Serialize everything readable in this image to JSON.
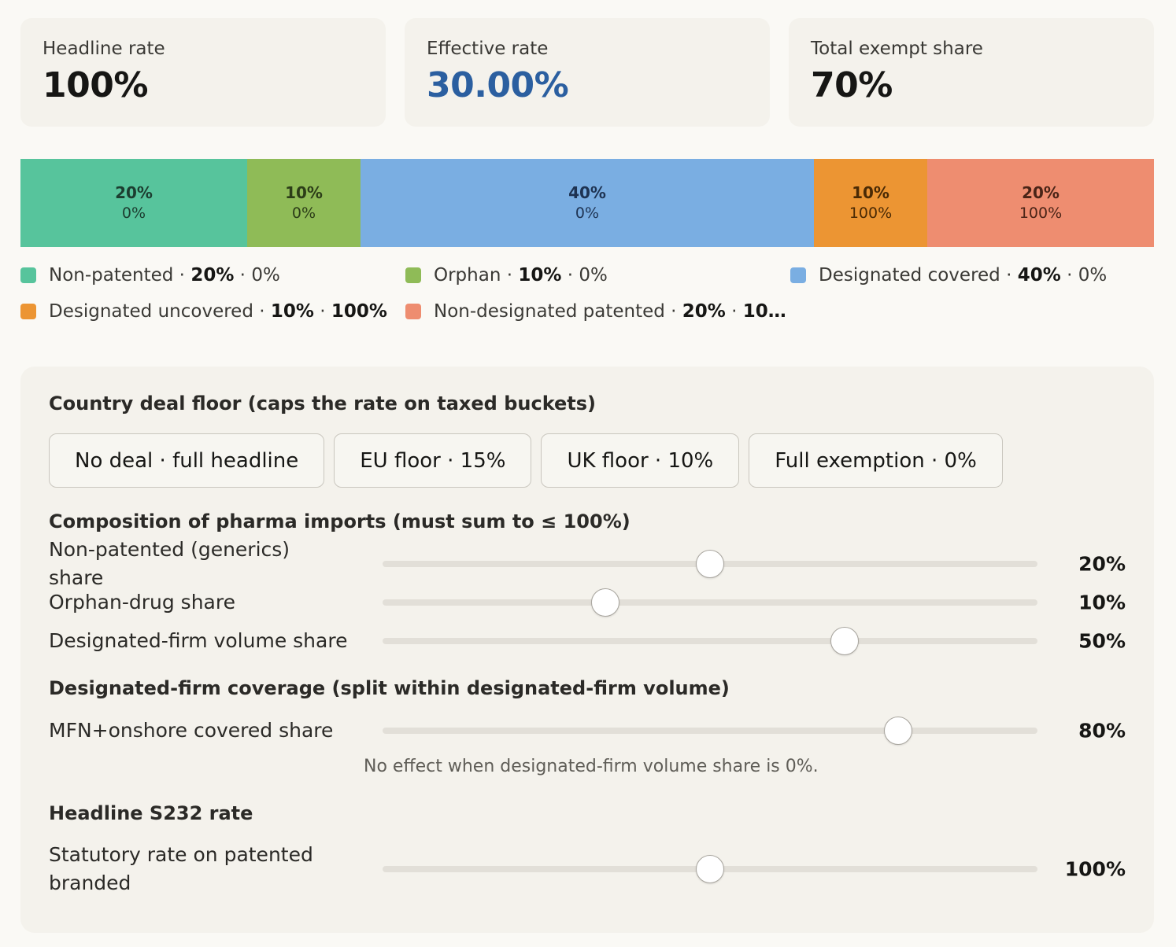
{
  "stats": [
    {
      "label": "Headline rate",
      "value": "100%"
    },
    {
      "label": "Effective rate",
      "value": "30.00%"
    },
    {
      "label": "Total exempt share",
      "value": "70%"
    }
  ],
  "colors": {
    "non_patented": "#57c49c",
    "orphan": "#8fbb57",
    "designated_covered": "#7aaee2",
    "designated_uncovered": "#ec9533",
    "non_designated_patented": "#ee8d70",
    "effective_rate_accent": "#2b5fa0"
  },
  "chart_data": {
    "type": "bar",
    "orientation": "stacked-horizontal",
    "series": [
      {
        "name": "Non-patented",
        "share": 20,
        "share_label": "20%",
        "rate_label": "0%",
        "rate": 0
      },
      {
        "name": "Orphan",
        "share": 10,
        "share_label": "10%",
        "rate_label": "0%",
        "rate": 0
      },
      {
        "name": "Designated covered",
        "share": 40,
        "share_label": "40%",
        "rate_label": "0%",
        "rate": 0
      },
      {
        "name": "Designated uncovered",
        "share": 10,
        "share_label": "10%",
        "rate_label": "100%",
        "rate": 100
      },
      {
        "name": "Non-designated patented",
        "share": 20,
        "share_label": "20%",
        "rate_label": "100%",
        "rate": 100
      }
    ]
  },
  "legend": [
    {
      "name": "Non-patented",
      "share": "20%",
      "rate": "0%",
      "rate_bold": false
    },
    {
      "name": "Orphan",
      "share": "10%",
      "rate": "0%",
      "rate_bold": false
    },
    {
      "name": "Designated covered",
      "share": "40%",
      "rate": "0%",
      "rate_bold": false
    },
    {
      "name": "Designated uncovered",
      "share": "10%",
      "rate": "100%",
      "rate_bold": true
    },
    {
      "name": "Non-designated patented",
      "share": "20%",
      "rate": "10…",
      "rate_bold": true
    }
  ],
  "panel": {
    "floor_title": "Country deal floor (caps the rate on taxed buckets)",
    "presets": [
      "No deal · full headline",
      "EU floor · 15%",
      "UK floor · 10%",
      "Full exemption · 0%"
    ],
    "composition_title": "Composition of pharma imports (must sum to ≤ 100%)",
    "coverage_title": "Designated-firm coverage (split within designated-firm volume)",
    "headline_title": "Headline S232 rate",
    "note": "No effect when designated-firm volume share is 0%."
  },
  "sliders": [
    {
      "label": "Non-patented (generics) share",
      "value_label": "20%",
      "fraction": 0.5
    },
    {
      "label": "Orphan-drug share",
      "value_label": "10%",
      "fraction": 0.34
    },
    {
      "label": "Designated-firm volume share",
      "value_label": "50%",
      "fraction": 0.705
    },
    {
      "label": "MFN+onshore covered share",
      "value_label": "80%",
      "fraction": 0.787
    },
    {
      "label": "Statutory rate on patented branded",
      "value_label": "100%",
      "fraction": 0.5
    }
  ]
}
